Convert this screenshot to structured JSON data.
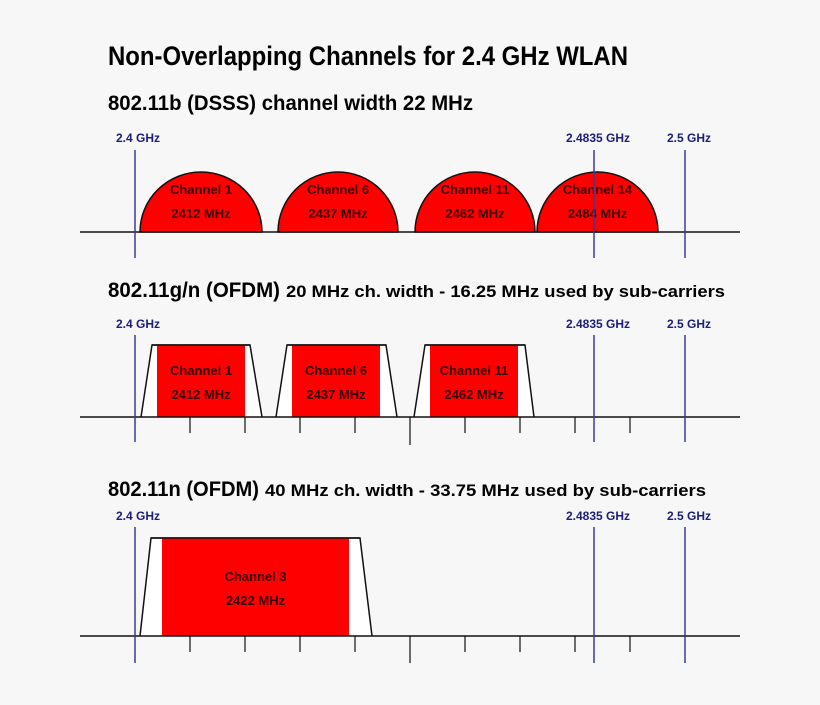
{
  "title": "Non-Overlapping Channels for 2.4 GHz WLAN",
  "colors": {
    "channel_fill": "#ff0000",
    "frequency_line": "#3b3b9b",
    "frequency_label": "#1c1c7a",
    "background": "#f7f7f7"
  },
  "frequency_markers": [
    "2.4 GHz",
    "2.4835 GHz",
    "2.5 GHz"
  ],
  "sections": [
    {
      "heading_bold": "802.11b (DSSS) channel width 22 MHz",
      "heading_rest": "",
      "shape": "semicircle",
      "channels": [
        {
          "name": "Channel 1",
          "freq": "2412 MHz"
        },
        {
          "name": "Channel 6",
          "freq": "2437 MHz"
        },
        {
          "name": "Channel 11",
          "freq": "2462 MHz"
        },
        {
          "name": "Channel 14",
          "freq": "2484 MHz"
        }
      ]
    },
    {
      "heading_bold": "802.11g/n (OFDM)",
      "heading_rest": "20 MHz ch. width - 16.25 MHz used by sub-carriers",
      "shape": "trapezoid",
      "channels": [
        {
          "name": "Channel 1",
          "freq": "2412 MHz"
        },
        {
          "name": "Channel 6",
          "freq": "2437 MHz"
        },
        {
          "name": "Channel 11",
          "freq": "2462 MHz"
        }
      ]
    },
    {
      "heading_bold": "802.11n (OFDM)",
      "heading_rest": "40 MHz ch. width - 33.75 MHz used by sub-carriers",
      "shape": "trapezoid",
      "channels": [
        {
          "name": "Channel 3",
          "freq": "2422 MHz"
        }
      ]
    }
  ]
}
